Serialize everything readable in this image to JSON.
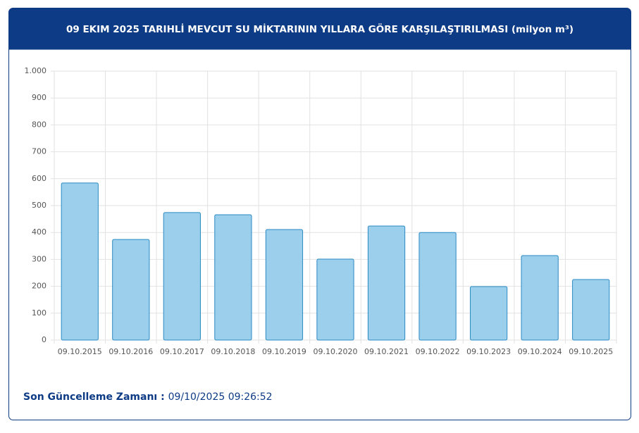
{
  "chart_data": {
    "type": "bar",
    "title": "09 EKIM 2025 TARIHLİ MEVCUT SU MİKTARININ YILLARA GÖRE KARŞILAŞTIRILMASI (milyon m³)",
    "categories": [
      "09.10.2015",
      "09.10.2016",
      "09.10.2017",
      "09.10.2018",
      "09.10.2019",
      "09.10.2020",
      "09.10.2021",
      "09.10.2022",
      "09.10.2023",
      "09.10.2024",
      "09.10.2025"
    ],
    "values": [
      584,
      374,
      474,
      466,
      411,
      301,
      424,
      400,
      199,
      314,
      225
    ],
    "color": "#9bcfec",
    "ylim": [
      0,
      1000
    ],
    "yticks": [
      0,
      100,
      200,
      300,
      400,
      500,
      600,
      700,
      800,
      900,
      {
        "value": 1000,
        "label": "1.000"
      }
    ],
    "grid": true
  },
  "footer": {
    "label": "Son Güncelleme Zamanı :",
    "time": "09/10/2025 09:26:52"
  }
}
